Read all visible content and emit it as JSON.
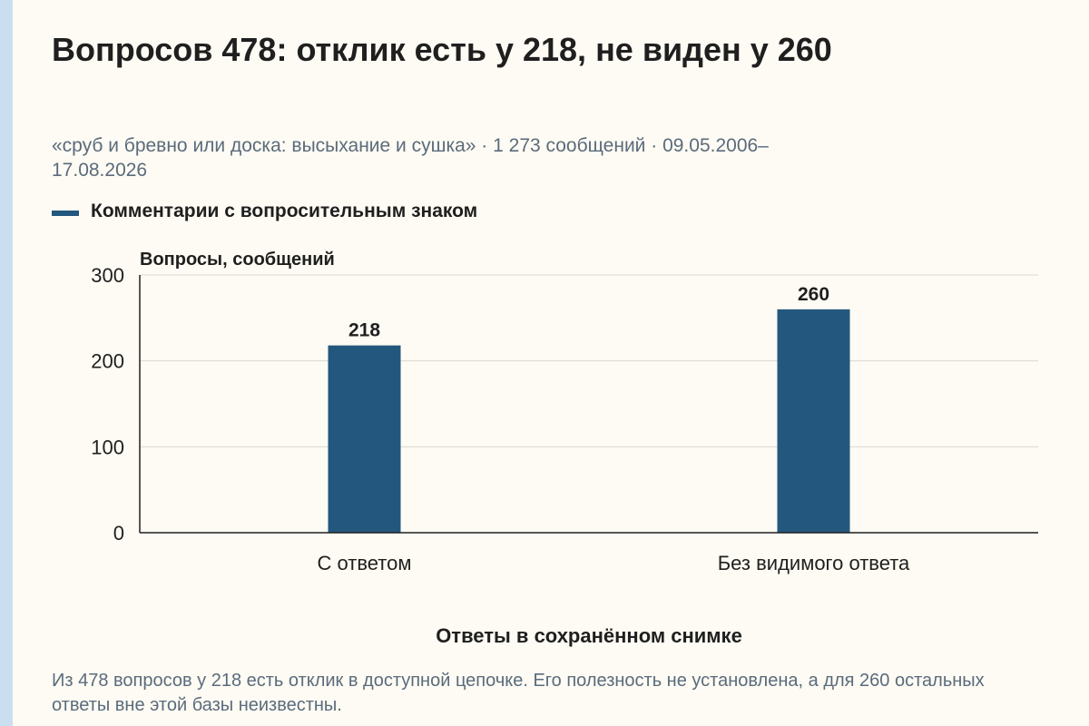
{
  "title": "Вопросов 478: отклик есть у 218, не виден у 260",
  "subtitle": "«сруб и бревно или доска: высыхание и сушка» · 1 273 сообщений · 09.05.2006–17.08.2026",
  "note": "Из 478 вопросов у 218 есть отклик в доступной цепочке. Его полезность не установлена, а для 260 остальных ответы вне этой базы неизвестны.",
  "colors": {
    "bar": "#23577e",
    "background": "#fdfbf3",
    "stripe": "#c9dff0",
    "muted_text": "#5b6b7c"
  },
  "chart_data": {
    "type": "bar",
    "categories": [
      "С ответом",
      "Без видимого ответа"
    ],
    "series": [
      {
        "name": "Комментарии с вопросительным знаком",
        "values": [
          218,
          260
        ]
      }
    ],
    "data_labels": [
      "218",
      "260"
    ],
    "xlabel": "Ответы в сохранённом снимке",
    "ylabel": "Вопросы, сообщений",
    "ylim": [
      0,
      300
    ],
    "yticks": [
      0,
      100,
      200,
      300
    ],
    "ytick_labels": [
      "0",
      "100",
      "200",
      "300"
    ],
    "grid": true,
    "legend_position": "top-left"
  }
}
